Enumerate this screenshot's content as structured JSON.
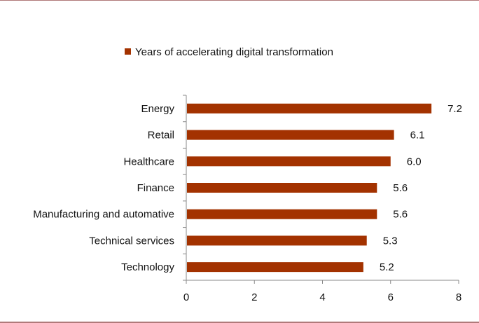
{
  "chart_data": {
    "type": "bar",
    "orientation": "horizontal",
    "categories": [
      "Energy",
      "Retail",
      "Healthcare",
      "Finance",
      "Manufacturing and automative",
      "Technical services",
      "Technology"
    ],
    "series": [
      {
        "name": "Years of accelerating digital transformation",
        "values": [
          7.2,
          6.1,
          6.0,
          5.6,
          5.6,
          5.3,
          5.2
        ],
        "labels": [
          "7.2",
          "6.1",
          "6.0",
          "5.6",
          "5.6",
          "5.3",
          "5.2"
        ],
        "color": "#a33200"
      }
    ],
    "xlim": [
      0,
      8
    ],
    "xticks": [
      0,
      2,
      4,
      6,
      8
    ],
    "legend_position": "top",
    "grid": false,
    "title": "",
    "xlabel": "",
    "ylabel": ""
  }
}
